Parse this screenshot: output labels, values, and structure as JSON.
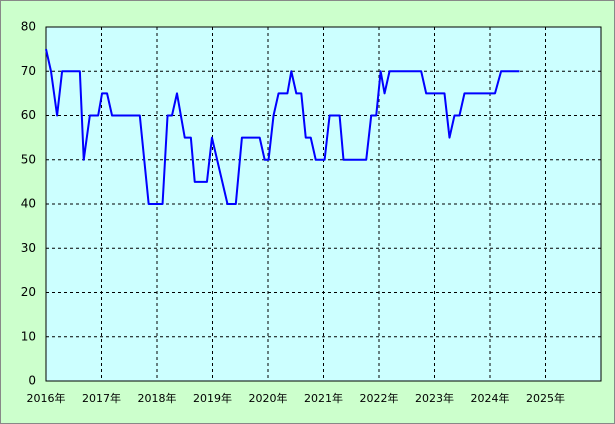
{
  "chart_data": {
    "type": "line",
    "x": [
      2016.0,
      2016.09,
      2016.2,
      2016.29,
      2016.61,
      2016.68,
      2016.79,
      2016.94,
      2017.01,
      2017.1,
      2017.19,
      2017.69,
      2017.85,
      2018.1,
      2018.19,
      2018.27,
      2018.36,
      2018.5,
      2018.61,
      2018.68,
      2018.9,
      2018.99,
      2019.27,
      2019.42,
      2019.53,
      2019.85,
      2019.94,
      2020.01,
      2020.1,
      2020.19,
      2020.35,
      2020.42,
      2020.51,
      2020.6,
      2020.68,
      2020.77,
      2020.86,
      2021.02,
      2021.11,
      2021.29,
      2021.36,
      2021.77,
      2021.86,
      2021.95,
      2022.03,
      2022.1,
      2022.19,
      2022.76,
      2022.85,
      2023.18,
      2023.27,
      2023.36,
      2023.45,
      2023.54,
      2024.09,
      2024.2,
      2024.53
    ],
    "series": [
      {
        "color": "#0000ff",
        "values": [
          75,
          70,
          60,
          70,
          70,
          50,
          60,
          60,
          65,
          65,
          60,
          60,
          40,
          40,
          60,
          60,
          65,
          55,
          55,
          45,
          45,
          55,
          40,
          40,
          55,
          55,
          50,
          50,
          60,
          65,
          65,
          70,
          65,
          65,
          55,
          55,
          50,
          50,
          60,
          60,
          50,
          50,
          60,
          60,
          70,
          65,
          70,
          70,
          65,
          65,
          55,
          60,
          60,
          65,
          65,
          70,
          70
        ]
      }
    ],
    "xlim": [
      2016,
      2026
    ],
    "xticks": [
      {
        "value": 2016,
        "label": "2016年"
      },
      {
        "value": 2017,
        "label": "2017年"
      },
      {
        "value": 2018,
        "label": "2018年"
      },
      {
        "value": 2019,
        "label": "2019年"
      },
      {
        "value": 2020,
        "label": "2020年"
      },
      {
        "value": 2021,
        "label": "2021年"
      },
      {
        "value": 2022,
        "label": "2022年"
      },
      {
        "value": 2023,
        "label": "2023年"
      },
      {
        "value": 2024,
        "label": "2024年"
      },
      {
        "value": 2025,
        "label": "2025年"
      }
    ],
    "ylim": [
      0,
      80
    ],
    "yticks": [
      0,
      10,
      20,
      30,
      40,
      50,
      60,
      70,
      80
    ],
    "grid": true
  }
}
